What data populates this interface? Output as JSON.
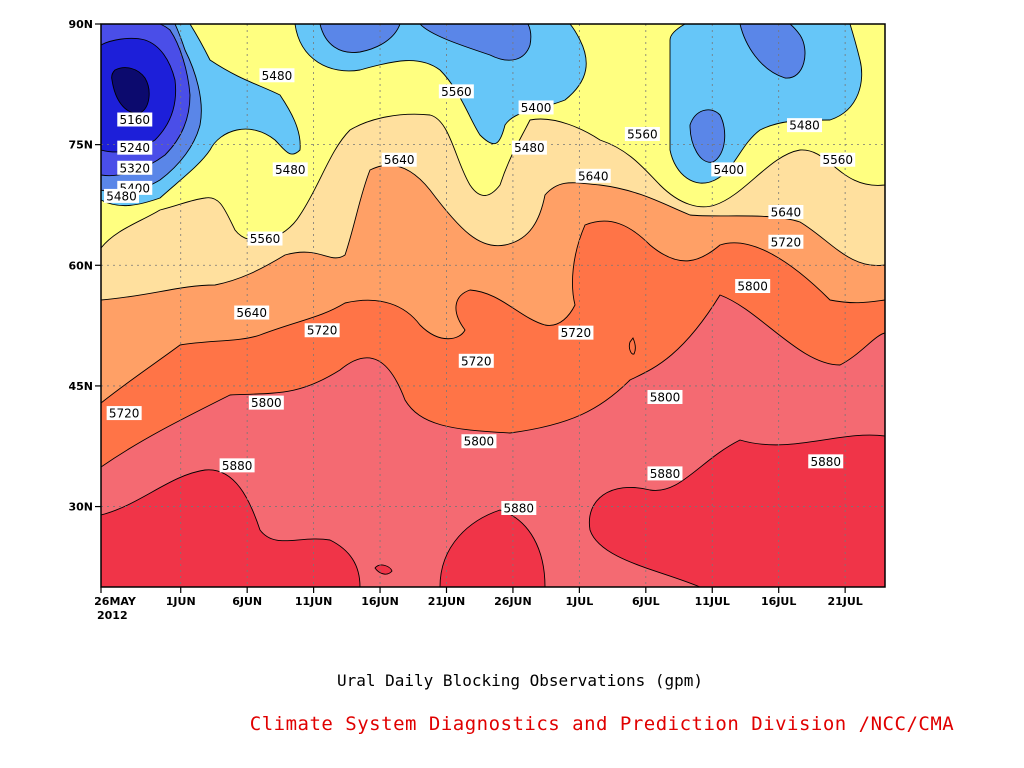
{
  "chart_data": {
    "type": "heatmap",
    "subtype": "filled-contour",
    "title": "Ural Daily Blocking Observations (gpm)",
    "credit": "Climate System Diagnostics and Prediction Division /NCC/CMA",
    "x_ticks": [
      "26MAY",
      "1JUN",
      "6JUN",
      "11JUN",
      "16JUN",
      "21JUN",
      "26JUN",
      "1JUL",
      "6JUL",
      "11JUL",
      "16JUL",
      "21JUL"
    ],
    "x_year": "2012",
    "x_range_days": [
      0,
      59
    ],
    "y_ticks": [
      "30N",
      "45N",
      "60N",
      "75N",
      "90N"
    ],
    "y_range_lat": [
      20,
      90
    ],
    "contour_levels": [
      5160,
      5240,
      5320,
      5400,
      5480,
      5560,
      5640,
      5720,
      5800,
      5880
    ],
    "colors": [
      "#0c0a6e",
      "#1d1fd9",
      "#4a4ee8",
      "#5a86e8",
      "#66c6f8",
      "#ffff80",
      "#ffe09e",
      "#ffa066",
      "#ff7447",
      "#f46a72",
      "#f03448"
    ],
    "labels": [
      {
        "text": "5160",
        "day": 1.3,
        "lat": 78
      },
      {
        "text": "5240",
        "day": 1.3,
        "lat": 74.5
      },
      {
        "text": "5320",
        "day": 1.3,
        "lat": 72
      },
      {
        "text": "5400",
        "day": 1.3,
        "lat": 69.5
      },
      {
        "text": "5480",
        "day": 0.3,
        "lat": 68.5
      },
      {
        "text": "5480",
        "day": 12.0,
        "lat": 83.5
      },
      {
        "text": "5560",
        "day": 25.5,
        "lat": 81.5
      },
      {
        "text": "5400",
        "day": 31.5,
        "lat": 79.5
      },
      {
        "text": "5480",
        "day": 31.0,
        "lat": 74.5
      },
      {
        "text": "5480",
        "day": 13.0,
        "lat": 71.8
      },
      {
        "text": "5560",
        "day": 39.5,
        "lat": 76.2
      },
      {
        "text": "5400",
        "day": 46.0,
        "lat": 71.8
      },
      {
        "text": "5480",
        "day": 51.7,
        "lat": 77.3
      },
      {
        "text": "5560",
        "day": 54.2,
        "lat": 73.0
      },
      {
        "text": "5640",
        "day": 21.2,
        "lat": 73.0
      },
      {
        "text": "5640",
        "day": 35.8,
        "lat": 71.0
      },
      {
        "text": "5560",
        "day": 11.1,
        "lat": 63.2
      },
      {
        "text": "5640",
        "day": 50.3,
        "lat": 66.5
      },
      {
        "text": "5720",
        "day": 50.3,
        "lat": 62.8
      },
      {
        "text": "5640",
        "day": 10.1,
        "lat": 54.0
      },
      {
        "text": "5720",
        "day": 15.4,
        "lat": 51.8
      },
      {
        "text": "5720",
        "day": 34.5,
        "lat": 51.5
      },
      {
        "text": "5720",
        "day": 27.0,
        "lat": 48.0
      },
      {
        "text": "5800",
        "day": 47.8,
        "lat": 57.3
      },
      {
        "text": "5720",
        "day": 0.5,
        "lat": 41.5
      },
      {
        "text": "5800",
        "day": 11.2,
        "lat": 42.8
      },
      {
        "text": "5800",
        "day": 41.2,
        "lat": 43.5
      },
      {
        "text": "5800",
        "day": 27.2,
        "lat": 38.0
      },
      {
        "text": "5880",
        "day": 9.0,
        "lat": 35.0
      },
      {
        "text": "5880",
        "day": 41.2,
        "lat": 34.0
      },
      {
        "text": "5880",
        "day": 53.3,
        "lat": 35.5
      },
      {
        "text": "5880",
        "day": 30.2,
        "lat": 29.7
      }
    ]
  }
}
